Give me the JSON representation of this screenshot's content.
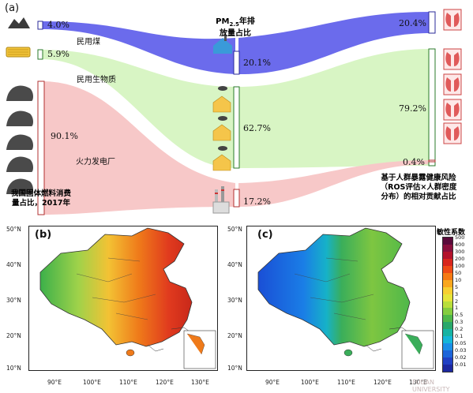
{
  "panel_a": {
    "label": "(a)",
    "sources": {
      "coal_label": "民用煤",
      "biomass_label": "民用生物质",
      "power_label": "火力发电厂",
      "coal_pct": "4.0%",
      "biomass_pct": "5.9%",
      "power_pct": "90.1%"
    },
    "left_caption": [
      "我国固体燃料消费",
      "量占比，2017年"
    ],
    "pm_title": [
      "PM",
      "2.5",
      "年排",
      "放量占比"
    ],
    "pm_shares": {
      "coal": "20.1%",
      "biomass": "62.7%",
      "power": "17.2%"
    },
    "risk_shares": {
      "coal": "20.4%",
      "biomass": "79.2%",
      "power": "0.4%"
    },
    "right_caption": [
      "基于人群暴露健康风险",
      "（ROS评估×人群密度",
      "分布）的相对贡献占比"
    ],
    "colors": {
      "coal": "#5b5bea",
      "biomass": "#d8f5c4",
      "power": "#f7c8c8"
    }
  },
  "panel_b": {
    "label": "(b)",
    "lat_ticks": [
      "50°N",
      "40°N",
      "30°N",
      "20°N",
      "10°N"
    ],
    "lon_ticks": [
      "90°E",
      "100°E",
      "110°E",
      "120°E",
      "130°E"
    ]
  },
  "panel_c": {
    "label": "(c)",
    "lat_ticks": [
      "50°N",
      "40°N",
      "30°N",
      "20°N",
      "10°N"
    ],
    "lon_ticks": [
      "90°E",
      "100°E",
      "110°E",
      "120°E",
      "130°E"
    ]
  },
  "colorbar": {
    "title": "敏性系数",
    "labels": [
      "500",
      "400",
      "300",
      "200",
      "100",
      "50",
      "10",
      "5",
      "3",
      "2",
      "1",
      "0.5",
      "0.3",
      "0.2",
      "0.1",
      "0.05",
      "0.03",
      "0.02",
      "0.01"
    ],
    "colors": [
      "#5a0a3a",
      "#8a0f3c",
      "#b3122b",
      "#d8261d",
      "#ee4a16",
      "#f57a14",
      "#f9a71e",
      "#f7cf30",
      "#e6e43a",
      "#b9de3b",
      "#85cd3f",
      "#4fb84a",
      "#2aa86b",
      "#17b3a3",
      "#14b6d8",
      "#1a8ee6",
      "#1d65d9",
      "#2040c4",
      "#1c28a0"
    ]
  },
  "watermark": "FUDAN UNIVERSITY"
}
